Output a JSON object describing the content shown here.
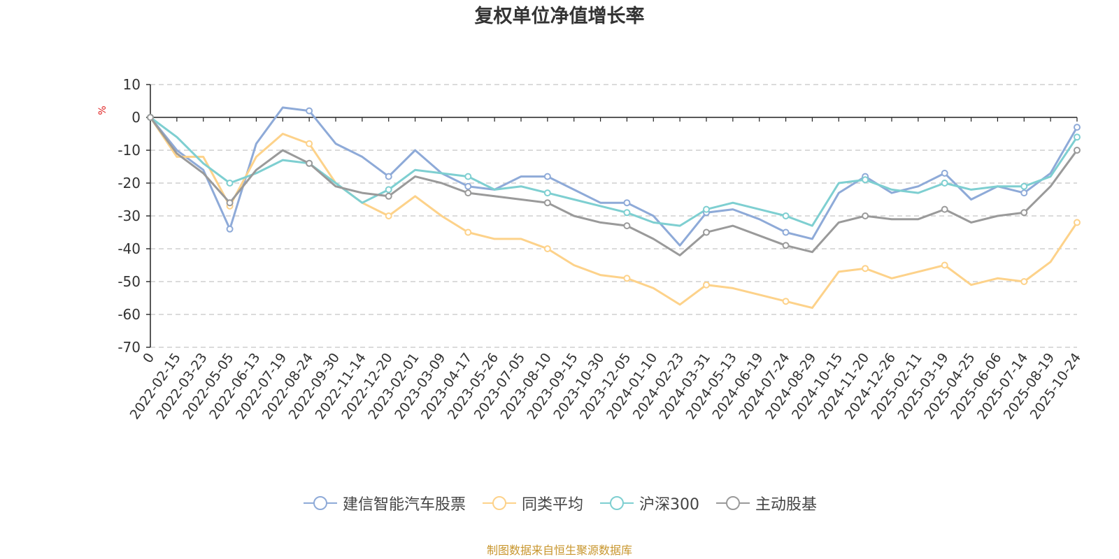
{
  "chart_data": {
    "type": "line",
    "title": "复权单位净值增长率",
    "ylabel": "%",
    "ylim": [
      -70,
      10
    ],
    "yticks": [
      10,
      0,
      -10,
      -20,
      -30,
      -40,
      -50,
      -60,
      -70
    ],
    "ytick_labels": [
      "10",
      "0",
      "-10",
      "-20",
      "-30",
      "-40",
      "-50",
      "-60",
      "-70"
    ],
    "categories": [
      "0",
      "2022-02-15",
      "2022-03-23",
      "2022-05-05",
      "2022-06-13",
      "2022-07-19",
      "2022-08-24",
      "2022-09-30",
      "2022-11-14",
      "2022-12-20",
      "2023-02-01",
      "2023-03-09",
      "2023-04-17",
      "2023-05-26",
      "2023-07-05",
      "2023-08-10",
      "2023-09-15",
      "2023-10-30",
      "2023-12-05",
      "2024-01-10",
      "2024-02-23",
      "2024-03-31",
      "2024-05-13",
      "2024-06-19",
      "2024-07-24",
      "2024-08-29",
      "2024-10-15",
      "2024-11-20",
      "2024-12-26",
      "2025-02-11",
      "2025-03-19",
      "2025-04-25",
      "2025-06-06",
      "2025-07-14",
      "2025-08-19",
      "2025-10-24"
    ],
    "series": [
      {
        "name": "建信智能汽车股票",
        "color": "#8eaad8",
        "values": [
          0,
          -10,
          -16,
          -34,
          -8,
          3,
          2,
          -8,
          -12,
          -18,
          -10,
          -17,
          -21,
          -22,
          -18,
          -18,
          -22,
          -26,
          -26,
          -30,
          -39,
          -29,
          -28,
          -31,
          -35,
          -37,
          -23,
          -18,
          -23,
          -21,
          -17,
          -25,
          -21,
          -23,
          -17,
          -3
        ]
      },
      {
        "name": "同类平均",
        "color": "#fdd28a",
        "values": [
          0,
          -12,
          -12,
          -27,
          -12,
          -5,
          -8,
          -20,
          -26,
          -30,
          -24,
          -30,
          -35,
          -37,
          -37,
          -40,
          -45,
          -48,
          -49,
          -52,
          -57,
          -51,
          -52,
          -54,
          -56,
          -58,
          -47,
          -46,
          -49,
          -47,
          -45,
          -51,
          -49,
          -50,
          -44,
          -32
        ]
      },
      {
        "name": "沪深300",
        "color": "#7ecfd1",
        "values": [
          0,
          -6,
          -14,
          -20,
          -17,
          -13,
          -14,
          -20,
          -26,
          -22,
          -16,
          -17,
          -18,
          -22,
          -21,
          -23,
          -25,
          -27,
          -29,
          -32,
          -33,
          -28,
          -26,
          -28,
          -30,
          -33,
          -20,
          -19,
          -22,
          -23,
          -20,
          -22,
          -21,
          -21,
          -18,
          -6
        ]
      },
      {
        "name": "主动股基",
        "color": "#9a9a9a",
        "values": [
          0,
          -11,
          -17,
          -26,
          -16,
          -10,
          -14,
          -21,
          -23,
          -24,
          -18,
          -20,
          -23,
          -24,
          -25,
          -26,
          -30,
          -32,
          -33,
          -37,
          -42,
          -35,
          -33,
          -36,
          -39,
          -41,
          -32,
          -30,
          -31,
          -31,
          -28,
          -32,
          -30,
          -29,
          -21,
          -10
        ]
      }
    ],
    "legend_position": "bottom-center",
    "grid": true,
    "source_note": "制图数据来自恒生聚源数据库"
  }
}
